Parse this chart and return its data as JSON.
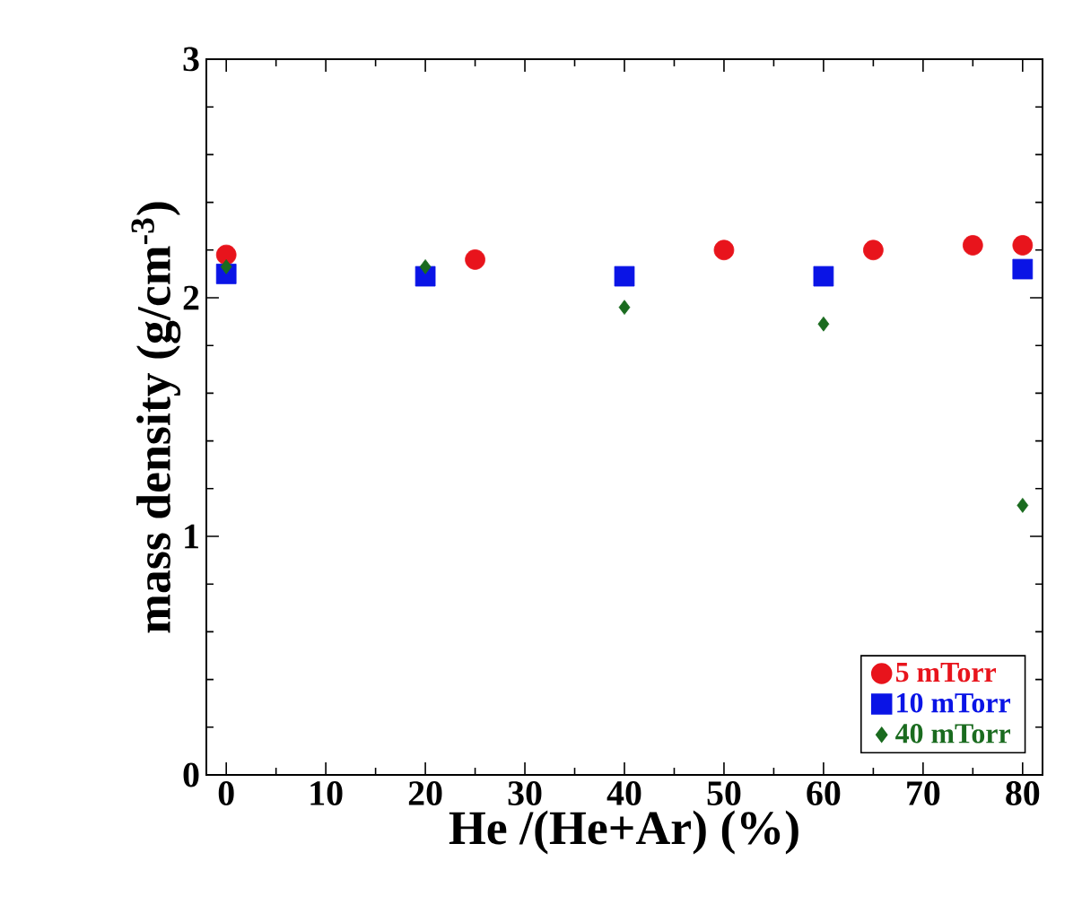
{
  "chart_data": {
    "type": "scatter",
    "xlabel": "He /(He+Ar) (%)",
    "ylabel": "mass density (g/cm$^{-3}$)",
    "xlim": [
      -2,
      82
    ],
    "xticks": [
      0,
      10,
      20,
      30,
      40,
      50,
      60,
      70,
      80
    ],
    "ylim": [
      0,
      3
    ],
    "yticks": [
      0,
      1,
      2,
      3
    ],
    "legend": "bottom right",
    "series": [
      {
        "name": "5 mTorr",
        "color": "#e8141c",
        "marker": "circle",
        "x": [
          0,
          25,
          50,
          65,
          75,
          80
        ],
        "values": [
          2.18,
          2.16,
          2.2,
          2.2,
          2.22,
          2.22
        ]
      },
      {
        "name": "10 mTorr",
        "color": "#0a14e6",
        "marker": "square",
        "x": [
          0,
          20,
          40,
          60,
          80
        ],
        "values": [
          2.1,
          2.09,
          2.09,
          2.09,
          2.12
        ]
      },
      {
        "name": "40 mTorr",
        "color": "#1a6b1f",
        "marker": "diamond",
        "x": [
          0,
          20,
          40,
          60,
          80
        ],
        "values": [
          2.13,
          2.13,
          1.96,
          1.89,
          1.13
        ]
      }
    ]
  }
}
